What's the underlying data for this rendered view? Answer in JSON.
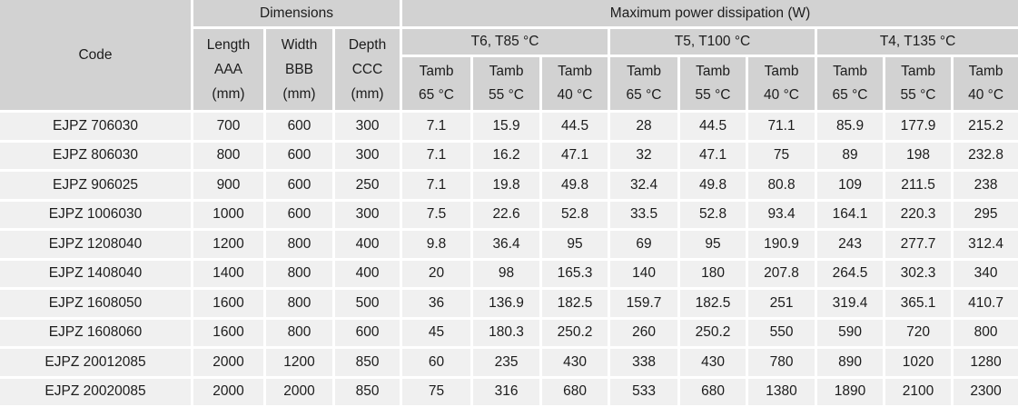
{
  "table": {
    "header": {
      "code": "Code",
      "dimensions": "Dimensions",
      "power": "Maximum power dissipation (W)",
      "dim_cols": [
        [
          "Length",
          "AAA",
          "(mm)"
        ],
        [
          "Width",
          "BBB",
          "(mm)"
        ],
        [
          "Depth",
          "CCC",
          "(mm)"
        ]
      ],
      "temp_groups": [
        "T6, T85 °C",
        "T5, T100 °C",
        "T4, T135 °C"
      ],
      "tamb_label": "Tamb",
      "tamb_temps": [
        "65 °C",
        "55 °C",
        "40 °C",
        "65 °C",
        "55 °C",
        "40 °C",
        "65 °C",
        "55 °C",
        "40 °C"
      ]
    },
    "rows": [
      {
        "code": "EJPZ 706030",
        "values": [
          "700",
          "600",
          "300",
          "7.1",
          "15.9",
          "44.5",
          "28",
          "44.5",
          "71.1",
          "85.9",
          "177.9",
          "215.2"
        ]
      },
      {
        "code": "EJPZ 806030",
        "values": [
          "800",
          "600",
          "300",
          "7.1",
          "16.2",
          "47.1",
          "32",
          "47.1",
          "75",
          "89",
          "198",
          "232.8"
        ]
      },
      {
        "code": "EJPZ 906025",
        "values": [
          "900",
          "600",
          "250",
          "7.1",
          "19.8",
          "49.8",
          "32.4",
          "49.8",
          "80.8",
          "109",
          "211.5",
          "238"
        ]
      },
      {
        "code": "EJPZ 1006030",
        "values": [
          "1000",
          "600",
          "300",
          "7.5",
          "22.6",
          "52.8",
          "33.5",
          "52.8",
          "93.4",
          "164.1",
          "220.3",
          "295"
        ]
      },
      {
        "code": "EJPZ 1208040",
        "values": [
          "1200",
          "800",
          "400",
          "9.8",
          "36.4",
          "95",
          "69",
          "95",
          "190.9",
          "243",
          "277.7",
          "312.4"
        ]
      },
      {
        "code": "EJPZ 1408040",
        "values": [
          "1400",
          "800",
          "400",
          "20",
          "98",
          "165.3",
          "140",
          "180",
          "207.8",
          "264.5",
          "302.3",
          "340"
        ]
      },
      {
        "code": "EJPZ 1608050",
        "values": [
          "1600",
          "800",
          "500",
          "36",
          "136.9",
          "182.5",
          "159.7",
          "182.5",
          "251",
          "319.4",
          "365.1",
          "410.7"
        ]
      },
      {
        "code": "EJPZ 1608060",
        "values": [
          "1600",
          "800",
          "600",
          "45",
          "180.3",
          "250.2",
          "260",
          "250.2",
          "550",
          "590",
          "720",
          "800"
        ]
      },
      {
        "code": "EJPZ 20012085",
        "values": [
          "2000",
          "1200",
          "850",
          "60",
          "235",
          "430",
          "338",
          "430",
          "780",
          "890",
          "1020",
          "1280"
        ]
      },
      {
        "code": "EJPZ 20020085",
        "values": [
          "2000",
          "2000",
          "850",
          "75",
          "316",
          "680",
          "533",
          "680",
          "1380",
          "1890",
          "2100",
          "2300"
        ]
      }
    ],
    "colors": {
      "header_bg": "#d2d2d2",
      "cell_bg": "#f0f0f0",
      "separator": "#ffffff",
      "text": "#1c1c1c"
    }
  }
}
